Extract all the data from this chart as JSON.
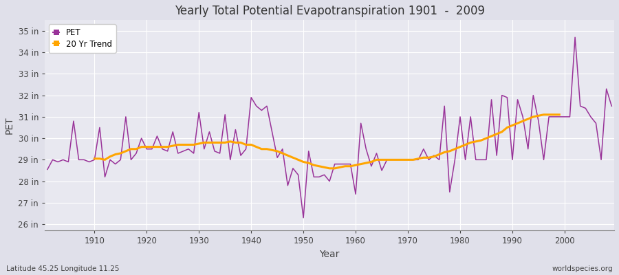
{
  "title": "Yearly Total Potential Evapotranspiration 1901  -  2009",
  "xlabel": "Year",
  "ylabel": "PET",
  "subtitle_left": "Latitude 45.25 Longitude 11.25",
  "subtitle_right": "worldspecies.org",
  "ylim": [
    25.7,
    35.5
  ],
  "yticks": [
    26,
    27,
    28,
    29,
    30,
    31,
    32,
    33,
    34,
    35
  ],
  "ytick_labels": [
    "26 in",
    "27 in",
    "28 in",
    "29 in",
    "30 in",
    "31 in",
    "32 in",
    "33 in",
    "34 in",
    "35 in"
  ],
  "pet_color": "#993399",
  "trend_color": "#FFA500",
  "bg_color": "#E0E0EA",
  "plot_bg_color": "#E8E8F0",
  "grid_color": "#FFFFFF",
  "text_color": "#444444",
  "years": [
    1901,
    1902,
    1903,
    1904,
    1905,
    1906,
    1907,
    1908,
    1909,
    1910,
    1911,
    1912,
    1913,
    1914,
    1915,
    1916,
    1917,
    1918,
    1919,
    1920,
    1921,
    1922,
    1923,
    1924,
    1925,
    1926,
    1927,
    1928,
    1929,
    1930,
    1931,
    1932,
    1933,
    1934,
    1935,
    1936,
    1937,
    1938,
    1939,
    1940,
    1941,
    1942,
    1943,
    1944,
    1945,
    1946,
    1947,
    1948,
    1949,
    1950,
    1951,
    1952,
    1953,
    1954,
    1955,
    1956,
    1957,
    1958,
    1959,
    1960,
    1961,
    1962,
    1963,
    1964,
    1965,
    1966,
    1967,
    1968,
    1969,
    1970,
    1971,
    1972,
    1973,
    1974,
    1975,
    1976,
    1977,
    1978,
    1979,
    1980,
    1981,
    1982,
    1983,
    1984,
    1985,
    1986,
    1987,
    1988,
    1989,
    1990,
    1991,
    1992,
    1993,
    1994,
    1995,
    1996,
    1997,
    1998,
    1999,
    2000,
    2001,
    2002,
    2003,
    2004,
    2005,
    2006,
    2007,
    2008,
    2009
  ],
  "pet_values": [
    28.55,
    29.0,
    28.9,
    29.0,
    28.9,
    30.8,
    29.0,
    29.0,
    28.9,
    29.0,
    30.5,
    28.2,
    29.0,
    28.8,
    29.0,
    31.0,
    29.0,
    29.3,
    30.0,
    29.5,
    29.5,
    30.1,
    29.5,
    29.4,
    30.3,
    29.3,
    29.4,
    29.5,
    29.3,
    31.2,
    29.5,
    30.3,
    29.4,
    29.3,
    31.1,
    29.0,
    30.4,
    29.2,
    29.5,
    31.9,
    31.5,
    31.3,
    31.5,
    30.3,
    29.1,
    29.5,
    27.8,
    28.6,
    28.3,
    26.3,
    29.4,
    28.2,
    28.2,
    28.3,
    28.0,
    28.8,
    28.8,
    28.8,
    28.8,
    27.4,
    30.7,
    29.5,
    28.7,
    29.3,
    28.5,
    29.0,
    29.0,
    29.0,
    29.0,
    29.0,
    29.0,
    29.0,
    29.5,
    29.0,
    29.2,
    29.0,
    31.5,
    27.5,
    29.0,
    31.0,
    29.0,
    31.0,
    29.0,
    29.0,
    29.0,
    31.8,
    29.2,
    32.0,
    31.9,
    29.0,
    31.8,
    31.0,
    29.5,
    32.0,
    30.8,
    29.0,
    31.0,
    31.0,
    31.0,
    31.0,
    31.0,
    34.7,
    31.5,
    31.4,
    31.0,
    30.7,
    29.0,
    32.3,
    31.5
  ],
  "trend_values": [
    null,
    null,
    null,
    null,
    null,
    null,
    null,
    null,
    null,
    29.05,
    29.05,
    29.0,
    29.15,
    29.25,
    29.3,
    29.4,
    29.5,
    29.5,
    29.6,
    29.6,
    29.6,
    29.6,
    29.6,
    29.6,
    29.65,
    29.7,
    29.7,
    29.7,
    29.7,
    29.75,
    29.8,
    29.8,
    29.8,
    29.8,
    29.8,
    29.85,
    29.8,
    29.8,
    29.7,
    29.7,
    29.6,
    29.5,
    29.5,
    29.45,
    29.4,
    29.3,
    29.2,
    29.1,
    29.0,
    28.9,
    28.85,
    28.75,
    28.7,
    28.65,
    28.6,
    28.6,
    28.65,
    28.7,
    28.7,
    28.75,
    28.8,
    28.85,
    28.9,
    29.0,
    29.0,
    29.0,
    29.0,
    29.0,
    29.0,
    29.0,
    29.0,
    29.05,
    29.1,
    29.1,
    29.15,
    29.25,
    29.35,
    29.4,
    29.5,
    29.6,
    29.7,
    29.8,
    29.85,
    29.9,
    30.0,
    30.1,
    30.2,
    30.3,
    30.5,
    30.6,
    30.7,
    30.8,
    30.9,
    31.0,
    31.05,
    31.1,
    31.1,
    31.1,
    31.1,
    null,
    null,
    null,
    null,
    null,
    null,
    null,
    null,
    null
  ]
}
